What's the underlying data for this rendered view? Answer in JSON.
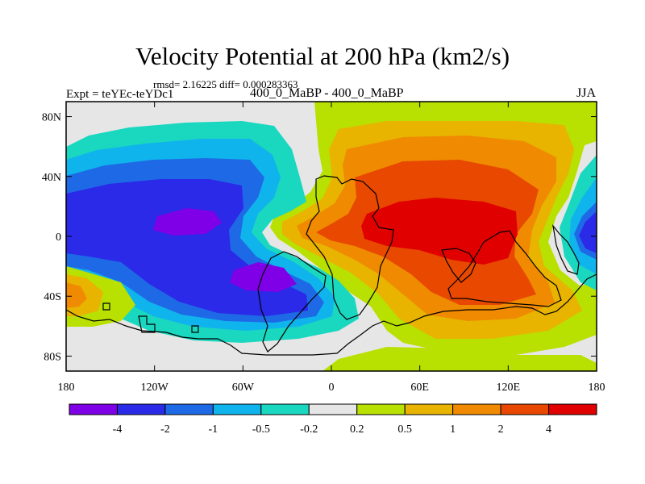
{
  "header": {
    "title": "Velocity Potential at 200 hPa (km2/s)",
    "stats": "rmsd= 2.16225 diff= 0.000283363",
    "experiment": "Expt = teYEc-teYDc1",
    "subtitle": "400_0_MaBP - 400_0_MaBP",
    "season": "JJA"
  },
  "chart_data": {
    "type": "filled-contour map",
    "title": "Velocity Potential at 200 hPa (km2/s)",
    "variable": "velocity potential",
    "units": "km2/s",
    "level": "200 hPa",
    "season": "JJA",
    "xlim": [
      -180,
      180
    ],
    "ylim": [
      -90,
      90
    ],
    "x_ticks": [
      {
        "value": -180,
        "label": "180"
      },
      {
        "value": -120,
        "label": "120W"
      },
      {
        "value": -60,
        "label": "60W"
      },
      {
        "value": 0,
        "label": "0"
      },
      {
        "value": 60,
        "label": "60E"
      },
      {
        "value": 120,
        "label": "120E"
      },
      {
        "value": 180,
        "label": "180"
      }
    ],
    "y_ticks": [
      {
        "value": 80,
        "label": "80N"
      },
      {
        "value": 40,
        "label": "40N"
      },
      {
        "value": 0,
        "label": "0"
      },
      {
        "value": -40,
        "label": "40S"
      },
      {
        "value": -80,
        "label": "80S"
      }
    ],
    "colorbar": {
      "levels": [
        "-4",
        "-2",
        "-1",
        "-0.5",
        "-0.2",
        "0.2",
        "0.5",
        "1",
        "2",
        "4"
      ],
      "colors": [
        "#7f00e6",
        "#2a2ae8",
        "#1e6ae6",
        "#10b4ec",
        "#1ad7c0",
        "#e6e6e6",
        "#b8e000",
        "#e8b400",
        "#f08a00",
        "#e84800",
        "#e00000"
      ]
    },
    "field_centers": [
      {
        "lon": 85,
        "lat": 5,
        "value": 4.5
      },
      {
        "lon": 50,
        "lat": 60,
        "value": 1.2
      },
      {
        "lon": -120,
        "lat": 15,
        "value": -4.3
      },
      {
        "lon": -40,
        "lat": -30,
        "value": -4.1
      },
      {
        "lon": 175,
        "lat": 0,
        "value": -2.5
      },
      {
        "lon": -175,
        "lat": -40,
        "value": 1.3
      },
      {
        "lon": 130,
        "lat": -80,
        "value": 0.3
      }
    ]
  }
}
